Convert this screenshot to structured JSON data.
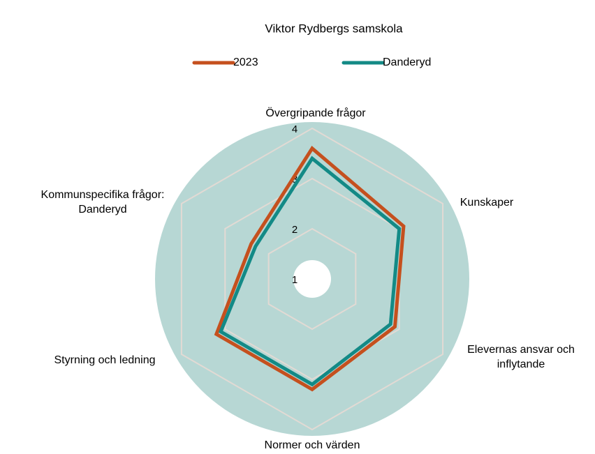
{
  "chart_data": {
    "type": "radar",
    "title": "Viktor Rydbergs samskola",
    "categories": [
      "Övergripande frågor",
      "Kunskaper",
      "Elevernas ansvar och inflytande",
      "Normer och värden",
      "Styrning och ledning",
      "Kommunspecifika frågor: Danderyd"
    ],
    "series": [
      {
        "name": "2023",
        "color": "#c5501e",
        "values": [
          3.6,
          3.1,
          2.9,
          3.2,
          3.2,
          2.4
        ]
      },
      {
        "name": "Danderyd",
        "color": "#138a86",
        "values": [
          3.4,
          3.0,
          2.8,
          3.1,
          3.1,
          2.3
        ]
      }
    ],
    "rlim": [
      1,
      4
    ],
    "rticks": [
      1,
      2,
      3,
      4
    ],
    "grid": true,
    "legend": "top"
  }
}
